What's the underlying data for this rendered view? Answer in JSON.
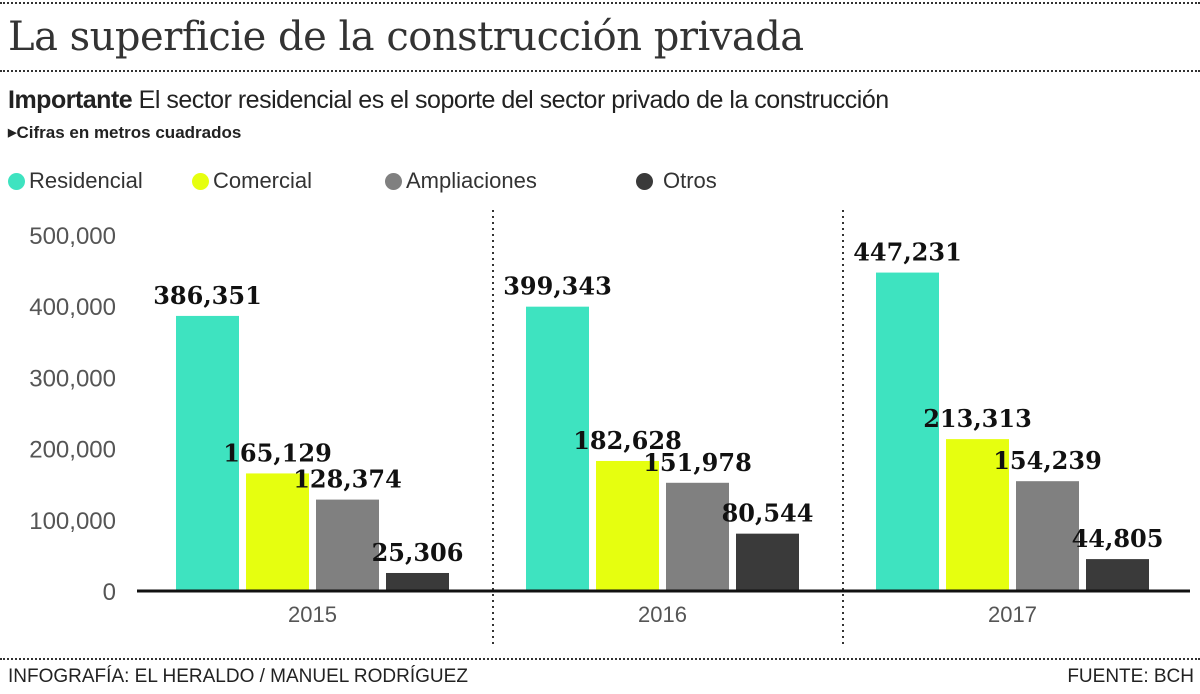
{
  "chart_data": {
    "type": "bar",
    "title": "La superficie de la construcción privada",
    "subtitle_bold": "Importante",
    "subtitle": "El sector residencial es el soporte del sector privado de la construcción",
    "note": "Cifras en metros cuadrados",
    "categories": [
      "2015",
      "2016",
      "2017"
    ],
    "series": [
      {
        "name": "Residencial",
        "color": "#3ee3c0",
        "values": [
          386351,
          399343,
          447231
        ],
        "labels": [
          "386,351",
          "399,343",
          "447,231"
        ]
      },
      {
        "name": "Comercial",
        "color": "#e6ff0f",
        "values": [
          165129,
          182628,
          213313
        ],
        "labels": [
          "165,129",
          "182,628",
          "213,313"
        ]
      },
      {
        "name": "Ampliaciones",
        "color": "#808080",
        "values": [
          128374,
          151978,
          154239
        ],
        "labels": [
          "128,374",
          "151,978",
          "154,239"
        ]
      },
      {
        "name": "Otros",
        "color": "#3a3a3a",
        "values": [
          25306,
          80544,
          44805
        ],
        "labels": [
          "25,306",
          "80,544",
          "44,805"
        ]
      }
    ],
    "yticks": [
      0,
      100000,
      200000,
      300000,
      400000,
      500000
    ],
    "ytick_labels": [
      "0",
      "100,000",
      "200,000",
      "300,000",
      "400,000",
      "500,000"
    ],
    "ylim": [
      0,
      500000
    ],
    "grid": false,
    "legend_position": "top-left",
    "credit": "INFOGRAFÍA: EL HERALDO / MANUEL RODRÍGUEZ",
    "source": "FUENTE: BCH"
  }
}
